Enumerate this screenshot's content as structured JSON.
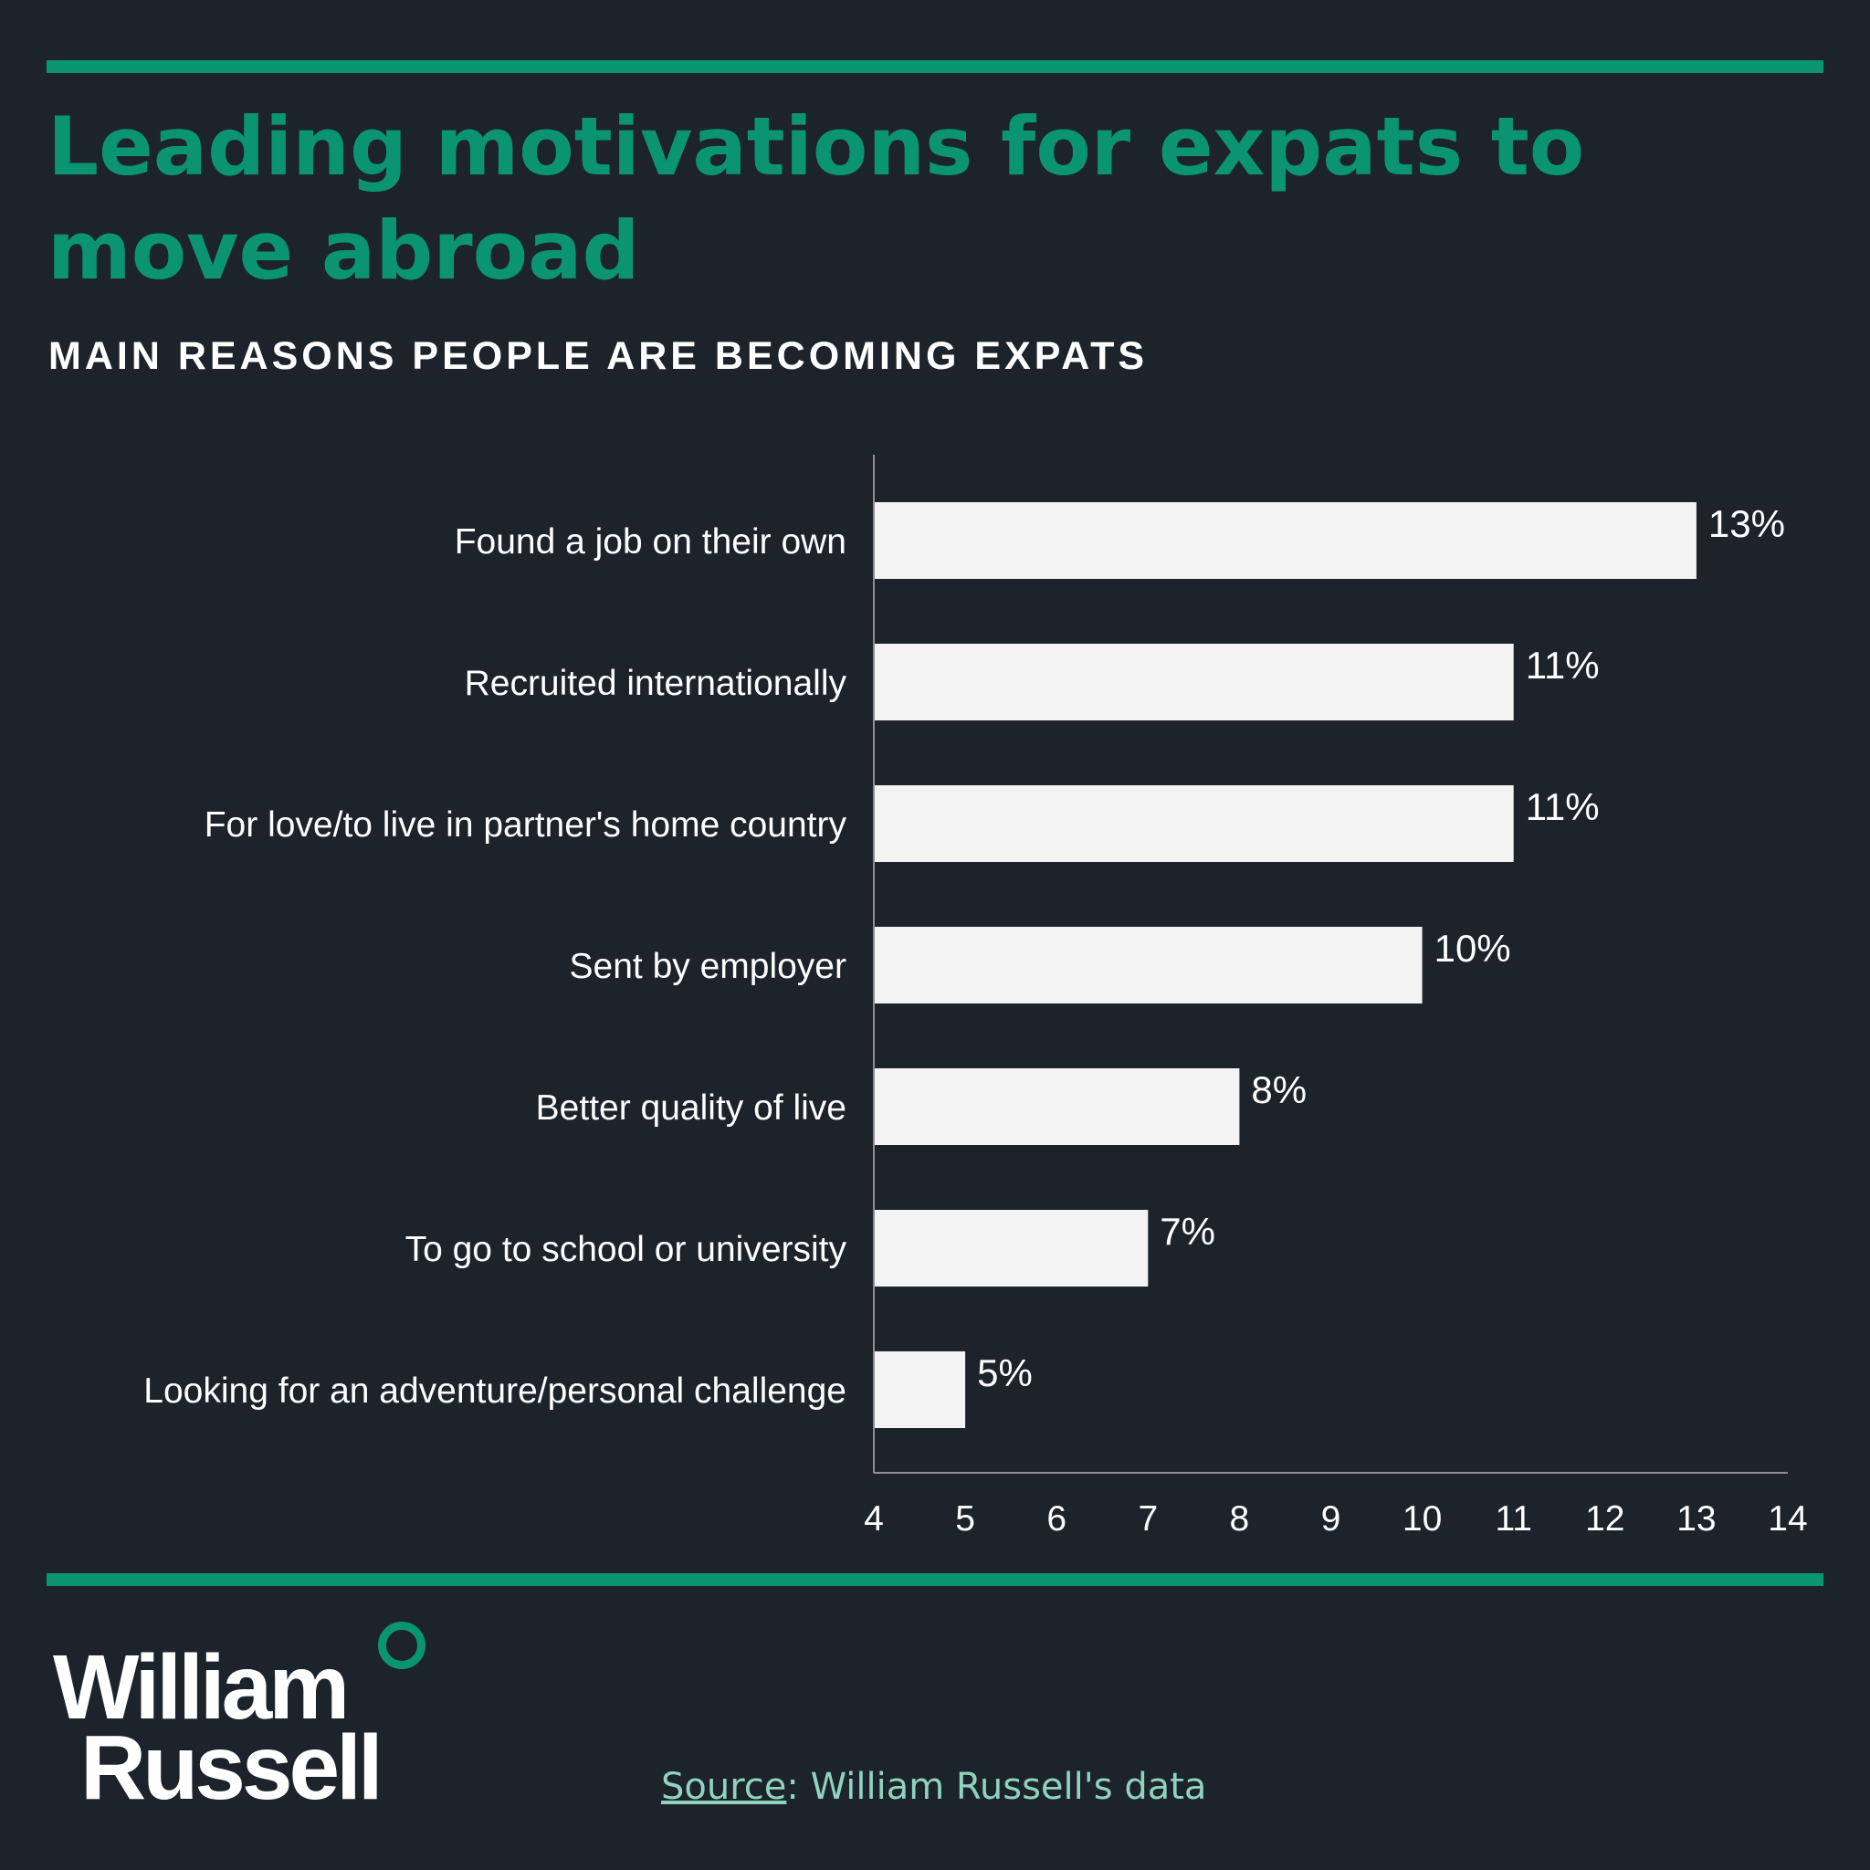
{
  "header": {
    "title": "Leading motivations for expats to move abroad",
    "subtitle": "MAIN REASONS PEOPLE ARE BECOMING EXPATS"
  },
  "colors": {
    "accent": "#0a9472",
    "background": "#1d232b",
    "bar": "#f3f3f3",
    "text": "#ffffff",
    "source_text": "#8fd3bd"
  },
  "chart_data": {
    "type": "bar",
    "orientation": "horizontal",
    "categories": [
      "Found a job on their own",
      "Recruited internationally",
      "For love/to live in partner's home country",
      "Sent by employer",
      "Better quality of live",
      "To go to school or university",
      "Looking for an adventure/personal challenge"
    ],
    "values": [
      13,
      11,
      11,
      10,
      8,
      7,
      5
    ],
    "value_labels": [
      "13%",
      "11%",
      "11%",
      "10%",
      "8%",
      "7%",
      "5%"
    ],
    "xlim": [
      4,
      14
    ],
    "xticks": [
      "4",
      "5",
      "6",
      "7",
      "8",
      "9",
      "10",
      "11",
      "12",
      "13",
      "14"
    ],
    "grid": false,
    "legend": "none"
  },
  "footer": {
    "logo_line1": "William",
    "logo_line2": "Russell",
    "source_link": "Source",
    "source_rest": ": William Russell's data"
  }
}
